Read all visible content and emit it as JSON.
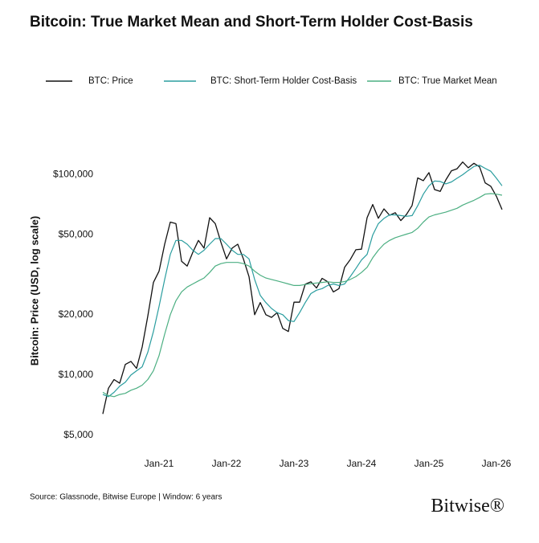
{
  "chart_data": {
    "type": "line",
    "title": "Bitcoin: True Market Mean and Short-Term Holder Cost-Basis",
    "ylabel": "Bitcoin: Price (USD, log scale)",
    "source": "Source: Glassnode, Bitwise Europe | Window: 6 years",
    "brand": "Bitwise®",
    "log_y": true,
    "grid": false,
    "ylim": [
      5000,
      170000
    ],
    "yticks": [
      {
        "value": 5000,
        "label": "$5,000"
      },
      {
        "value": 10000,
        "label": "$10,000"
      },
      {
        "value": 20000,
        "label": "$20,000"
      },
      {
        "value": 50000,
        "label": "$50,000"
      },
      {
        "value": 100000,
        "label": "$100,000"
      }
    ],
    "xticks": [
      "Jan-21",
      "Jan-22",
      "Jan-23",
      "Jan-24",
      "Jan-25",
      "Jan-26"
    ],
    "x": [
      "Mar-20",
      "Apr-20",
      "May-20",
      "Jun-20",
      "Jul-20",
      "Aug-20",
      "Sep-20",
      "Oct-20",
      "Nov-20",
      "Dec-20",
      "Jan-21",
      "Feb-21",
      "Mar-21",
      "Apr-21",
      "May-21",
      "Jun-21",
      "Jul-21",
      "Aug-21",
      "Sep-21",
      "Oct-21",
      "Nov-21",
      "Dec-21",
      "Jan-22",
      "Feb-22",
      "Mar-22",
      "Apr-22",
      "May-22",
      "Jun-22",
      "Jul-22",
      "Aug-22",
      "Sep-22",
      "Oct-22",
      "Nov-22",
      "Dec-22",
      "Jan-23",
      "Feb-23",
      "Mar-23",
      "Apr-23",
      "May-23",
      "Jun-23",
      "Jul-23",
      "Aug-23",
      "Sep-23",
      "Oct-23",
      "Nov-23",
      "Dec-23",
      "Jan-24",
      "Feb-24",
      "Mar-24",
      "Apr-24",
      "May-24",
      "Jun-24",
      "Jul-24",
      "Aug-24",
      "Sep-24",
      "Oct-24",
      "Nov-24",
      "Dec-24",
      "Jan-25",
      "Feb-25",
      "Mar-25",
      "Apr-25",
      "May-25",
      "Jun-25",
      "Jul-25",
      "Aug-25",
      "Sep-25",
      "Oct-25",
      "Nov-25",
      "Dec-25",
      "Jan-26",
      "Feb-26"
    ],
    "series": [
      {
        "name": "BTC: Price",
        "color": "#111111",
        "values": [
          6400,
          8600,
          9500,
          9100,
          11300,
          11700,
          10800,
          13800,
          19700,
          29000,
          33000,
          45000,
          58000,
          57000,
          37000,
          35000,
          41000,
          47000,
          43000,
          61000,
          57000,
          46000,
          38000,
          43000,
          45000,
          38000,
          31000,
          20000,
          23000,
          20000,
          19400,
          20500,
          17100,
          16500,
          23100,
          23100,
          28400,
          29200,
          27200,
          30400,
          29200,
          26000,
          27000,
          34500,
          37700,
          42200,
          42500,
          61000,
          71000,
          60600,
          67500,
          62700,
          64600,
          59000,
          63300,
          70200,
          96400,
          93400,
          102400,
          84300,
          82500,
          94200,
          104600,
          107100,
          115700,
          108200,
          114000,
          109500,
          91000,
          87500,
          78000,
          67000
        ]
      },
      {
        "name": "BTC: Short-Term Holder Cost-Basis",
        "color": "#2a9d9f",
        "values": [
          8000,
          7800,
          8200,
          8800,
          9200,
          10000,
          10500,
          11000,
          13000,
          16500,
          22000,
          30000,
          40000,
          47000,
          47000,
          45000,
          42000,
          40000,
          42000,
          45000,
          48000,
          48000,
          45000,
          42000,
          40000,
          40000,
          38000,
          30000,
          25000,
          23000,
          21500,
          20500,
          20000,
          18700,
          18500,
          20500,
          23000,
          25500,
          26500,
          27000,
          28000,
          28500,
          28000,
          28500,
          31000,
          34000,
          37500,
          40000,
          50000,
          57000,
          60500,
          63000,
          63000,
          62500,
          62000,
          62500,
          70000,
          80000,
          88000,
          93000,
          92500,
          90000,
          92000,
          96000,
          100000,
          105000,
          110000,
          111500,
          107500,
          104000,
          96000,
          88000
        ]
      },
      {
        "name": "BTC: True Market Mean",
        "color": "#4caf82",
        "values": [
          8200,
          7900,
          7800,
          8000,
          8100,
          8400,
          8600,
          8900,
          9500,
          10500,
          12500,
          16000,
          20000,
          23500,
          26000,
          27500,
          28500,
          29500,
          30500,
          32500,
          35000,
          36000,
          36500,
          36500,
          36500,
          36000,
          35000,
          33000,
          31500,
          30500,
          30000,
          29500,
          29000,
          28500,
          28000,
          28000,
          28300,
          28600,
          28800,
          29000,
          29200,
          29000,
          29000,
          29300,
          30000,
          31000,
          32500,
          34500,
          38500,
          42000,
          45000,
          47000,
          48500,
          49500,
          50500,
          51500,
          54000,
          58000,
          61500,
          63000,
          64000,
          65000,
          66500,
          68000,
          70500,
          72500,
          74500,
          77000,
          80000,
          80500,
          80000,
          79000
        ]
      }
    ]
  }
}
